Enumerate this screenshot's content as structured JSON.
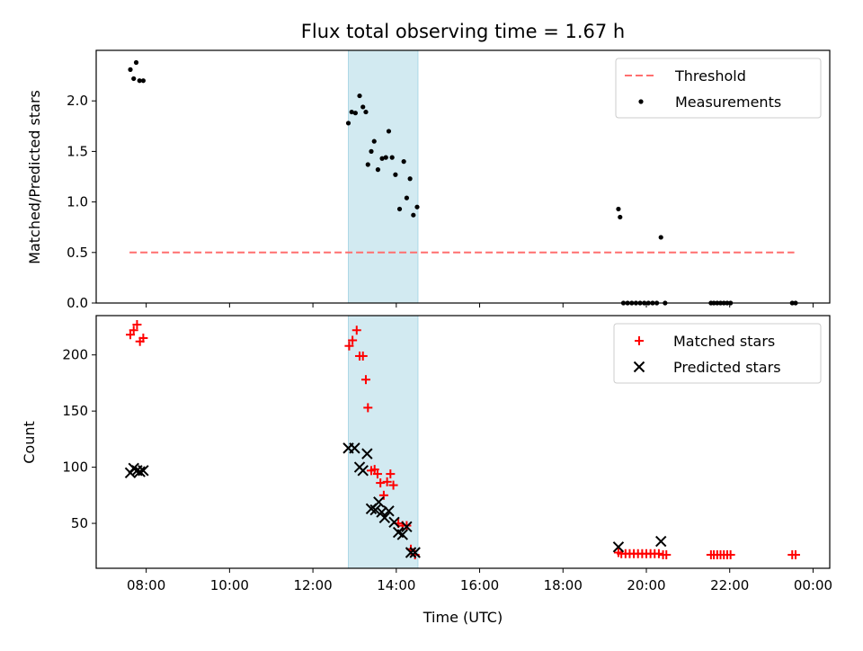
{
  "figure_title": "Flux total observing time = 1.67 h",
  "xlabel": "Time (UTC)",
  "x_ticks": [
    "08:00",
    "10:00",
    "12:00",
    "14:00",
    "16:00",
    "18:00",
    "20:00",
    "22:00",
    "00:00"
  ],
  "colors": {
    "highlight": "#add8e6",
    "threshold": "#ff6f6f",
    "matched": "#ff0000",
    "predicted": "#000000",
    "measurements": "#000000"
  },
  "chart_data": [
    {
      "type": "scatter",
      "panel": "top",
      "ylabel": "Matched/Predicted stars",
      "xlim_hours": [
        6.8,
        24.4
      ],
      "ylim": [
        0,
        2.5
      ],
      "y_ticks": [
        "0.0",
        "0.5",
        "1.0",
        "1.5",
        "2.0"
      ],
      "highlight_span_hours": [
        12.85,
        14.52
      ],
      "threshold": {
        "value": 0.5,
        "x_range_hours": [
          7.6,
          23.55
        ]
      },
      "legend": {
        "placement": "top-right",
        "entries": [
          "Threshold",
          "Measurements"
        ]
      },
      "series": [
        {
          "name": "Measurements",
          "points": [
            [
              7.62,
              2.31
            ],
            [
              7.7,
              2.22
            ],
            [
              7.76,
              2.38
            ],
            [
              7.84,
              2.2
            ],
            [
              7.93,
              2.2
            ],
            [
              12.85,
              1.78
            ],
            [
              12.93,
              1.89
            ],
            [
              13.02,
              1.88
            ],
            [
              13.12,
              2.05
            ],
            [
              13.2,
              1.94
            ],
            [
              13.27,
              1.89
            ],
            [
              13.32,
              1.37
            ],
            [
              13.4,
              1.5
            ],
            [
              13.47,
              1.6
            ],
            [
              13.56,
              1.32
            ],
            [
              13.66,
              1.43
            ],
            [
              13.75,
              1.44
            ],
            [
              13.82,
              1.7
            ],
            [
              13.9,
              1.44
            ],
            [
              13.98,
              1.27
            ],
            [
              14.08,
              0.93
            ],
            [
              14.18,
              1.4
            ],
            [
              14.25,
              1.04
            ],
            [
              14.33,
              1.23
            ],
            [
              14.41,
              0.87
            ],
            [
              14.5,
              0.95
            ],
            [
              19.33,
              0.93
            ],
            [
              19.37,
              0.85
            ],
            [
              19.45,
              0.0
            ],
            [
              19.55,
              0.0
            ],
            [
              19.65,
              0.0
            ],
            [
              19.75,
              0.0
            ],
            [
              19.85,
              0.0
            ],
            [
              19.95,
              0.0
            ],
            [
              20.05,
              0.0
            ],
            [
              20.15,
              0.0
            ],
            [
              20.25,
              0.0
            ],
            [
              20.35,
              0.65
            ],
            [
              20.45,
              0.0
            ],
            [
              21.55,
              0.0
            ],
            [
              21.62,
              0.0
            ],
            [
              21.7,
              0.0
            ],
            [
              21.78,
              0.0
            ],
            [
              21.86,
              0.0
            ],
            [
              21.94,
              0.0
            ],
            [
              22.02,
              0.0
            ],
            [
              23.5,
              0.0
            ],
            [
              23.58,
              0.0
            ]
          ]
        }
      ]
    },
    {
      "type": "scatter",
      "panel": "bottom",
      "ylabel": "Count",
      "xlim_hours": [
        6.8,
        24.4
      ],
      "ylim": [
        10,
        235
      ],
      "y_ticks": [
        "50",
        "100",
        "150",
        "200"
      ],
      "highlight_span_hours": [
        12.85,
        14.52
      ],
      "legend": {
        "placement": "top-right",
        "entries": [
          "Matched stars",
          "Predicted stars"
        ]
      },
      "series": [
        {
          "name": "Matched stars",
          "marker": "plus",
          "points": [
            [
              7.62,
              218
            ],
            [
              7.7,
              222
            ],
            [
              7.78,
              227
            ],
            [
              7.85,
              212
            ],
            [
              7.93,
              215
            ],
            [
              12.87,
              208
            ],
            [
              12.95,
              213
            ],
            [
              13.05,
              222
            ],
            [
              13.12,
              199
            ],
            [
              13.2,
              199
            ],
            [
              13.27,
              178
            ],
            [
              13.32,
              153
            ],
            [
              13.4,
              97
            ],
            [
              13.48,
              98
            ],
            [
              13.55,
              94
            ],
            [
              13.62,
              86
            ],
            [
              13.7,
              75
            ],
            [
              13.78,
              87
            ],
            [
              13.86,
              94
            ],
            [
              13.93,
              84
            ],
            [
              14.05,
              50
            ],
            [
              14.15,
              48
            ],
            [
              14.25,
              48
            ],
            [
              14.35,
              27
            ],
            [
              14.45,
              22
            ],
            [
              19.33,
              24
            ],
            [
              19.4,
              23
            ],
            [
              19.5,
              23
            ],
            [
              19.6,
              23
            ],
            [
              19.7,
              23
            ],
            [
              19.8,
              23
            ],
            [
              19.9,
              23
            ],
            [
              20.0,
              23
            ],
            [
              20.1,
              23
            ],
            [
              20.2,
              23
            ],
            [
              20.3,
              23
            ],
            [
              20.4,
              22
            ],
            [
              20.48,
              22
            ],
            [
              21.55,
              22
            ],
            [
              21.62,
              22
            ],
            [
              21.7,
              22
            ],
            [
              21.78,
              22
            ],
            [
              21.86,
              22
            ],
            [
              21.94,
              22
            ],
            [
              22.02,
              22
            ],
            [
              23.5,
              22
            ],
            [
              23.58,
              22
            ]
          ]
        },
        {
          "name": "Predicted stars",
          "marker": "x",
          "points": [
            [
              7.62,
              95
            ],
            [
              7.7,
              99
            ],
            [
              7.78,
              97
            ],
            [
              7.85,
              96
            ],
            [
              7.93,
              97
            ],
            [
              12.85,
              117
            ],
            [
              13.0,
              117
            ],
            [
              13.12,
              100
            ],
            [
              13.2,
              97
            ],
            [
              13.3,
              112
            ],
            [
              13.4,
              63
            ],
            [
              13.5,
              62
            ],
            [
              13.58,
              69
            ],
            [
              13.65,
              60
            ],
            [
              13.72,
              55
            ],
            [
              13.82,
              61
            ],
            [
              13.95,
              51
            ],
            [
              14.05,
              42
            ],
            [
              14.15,
              40
            ],
            [
              14.25,
              47
            ],
            [
              14.35,
              24
            ],
            [
              14.45,
              24
            ],
            [
              19.33,
              29
            ],
            [
              20.35,
              34
            ]
          ]
        }
      ]
    }
  ]
}
